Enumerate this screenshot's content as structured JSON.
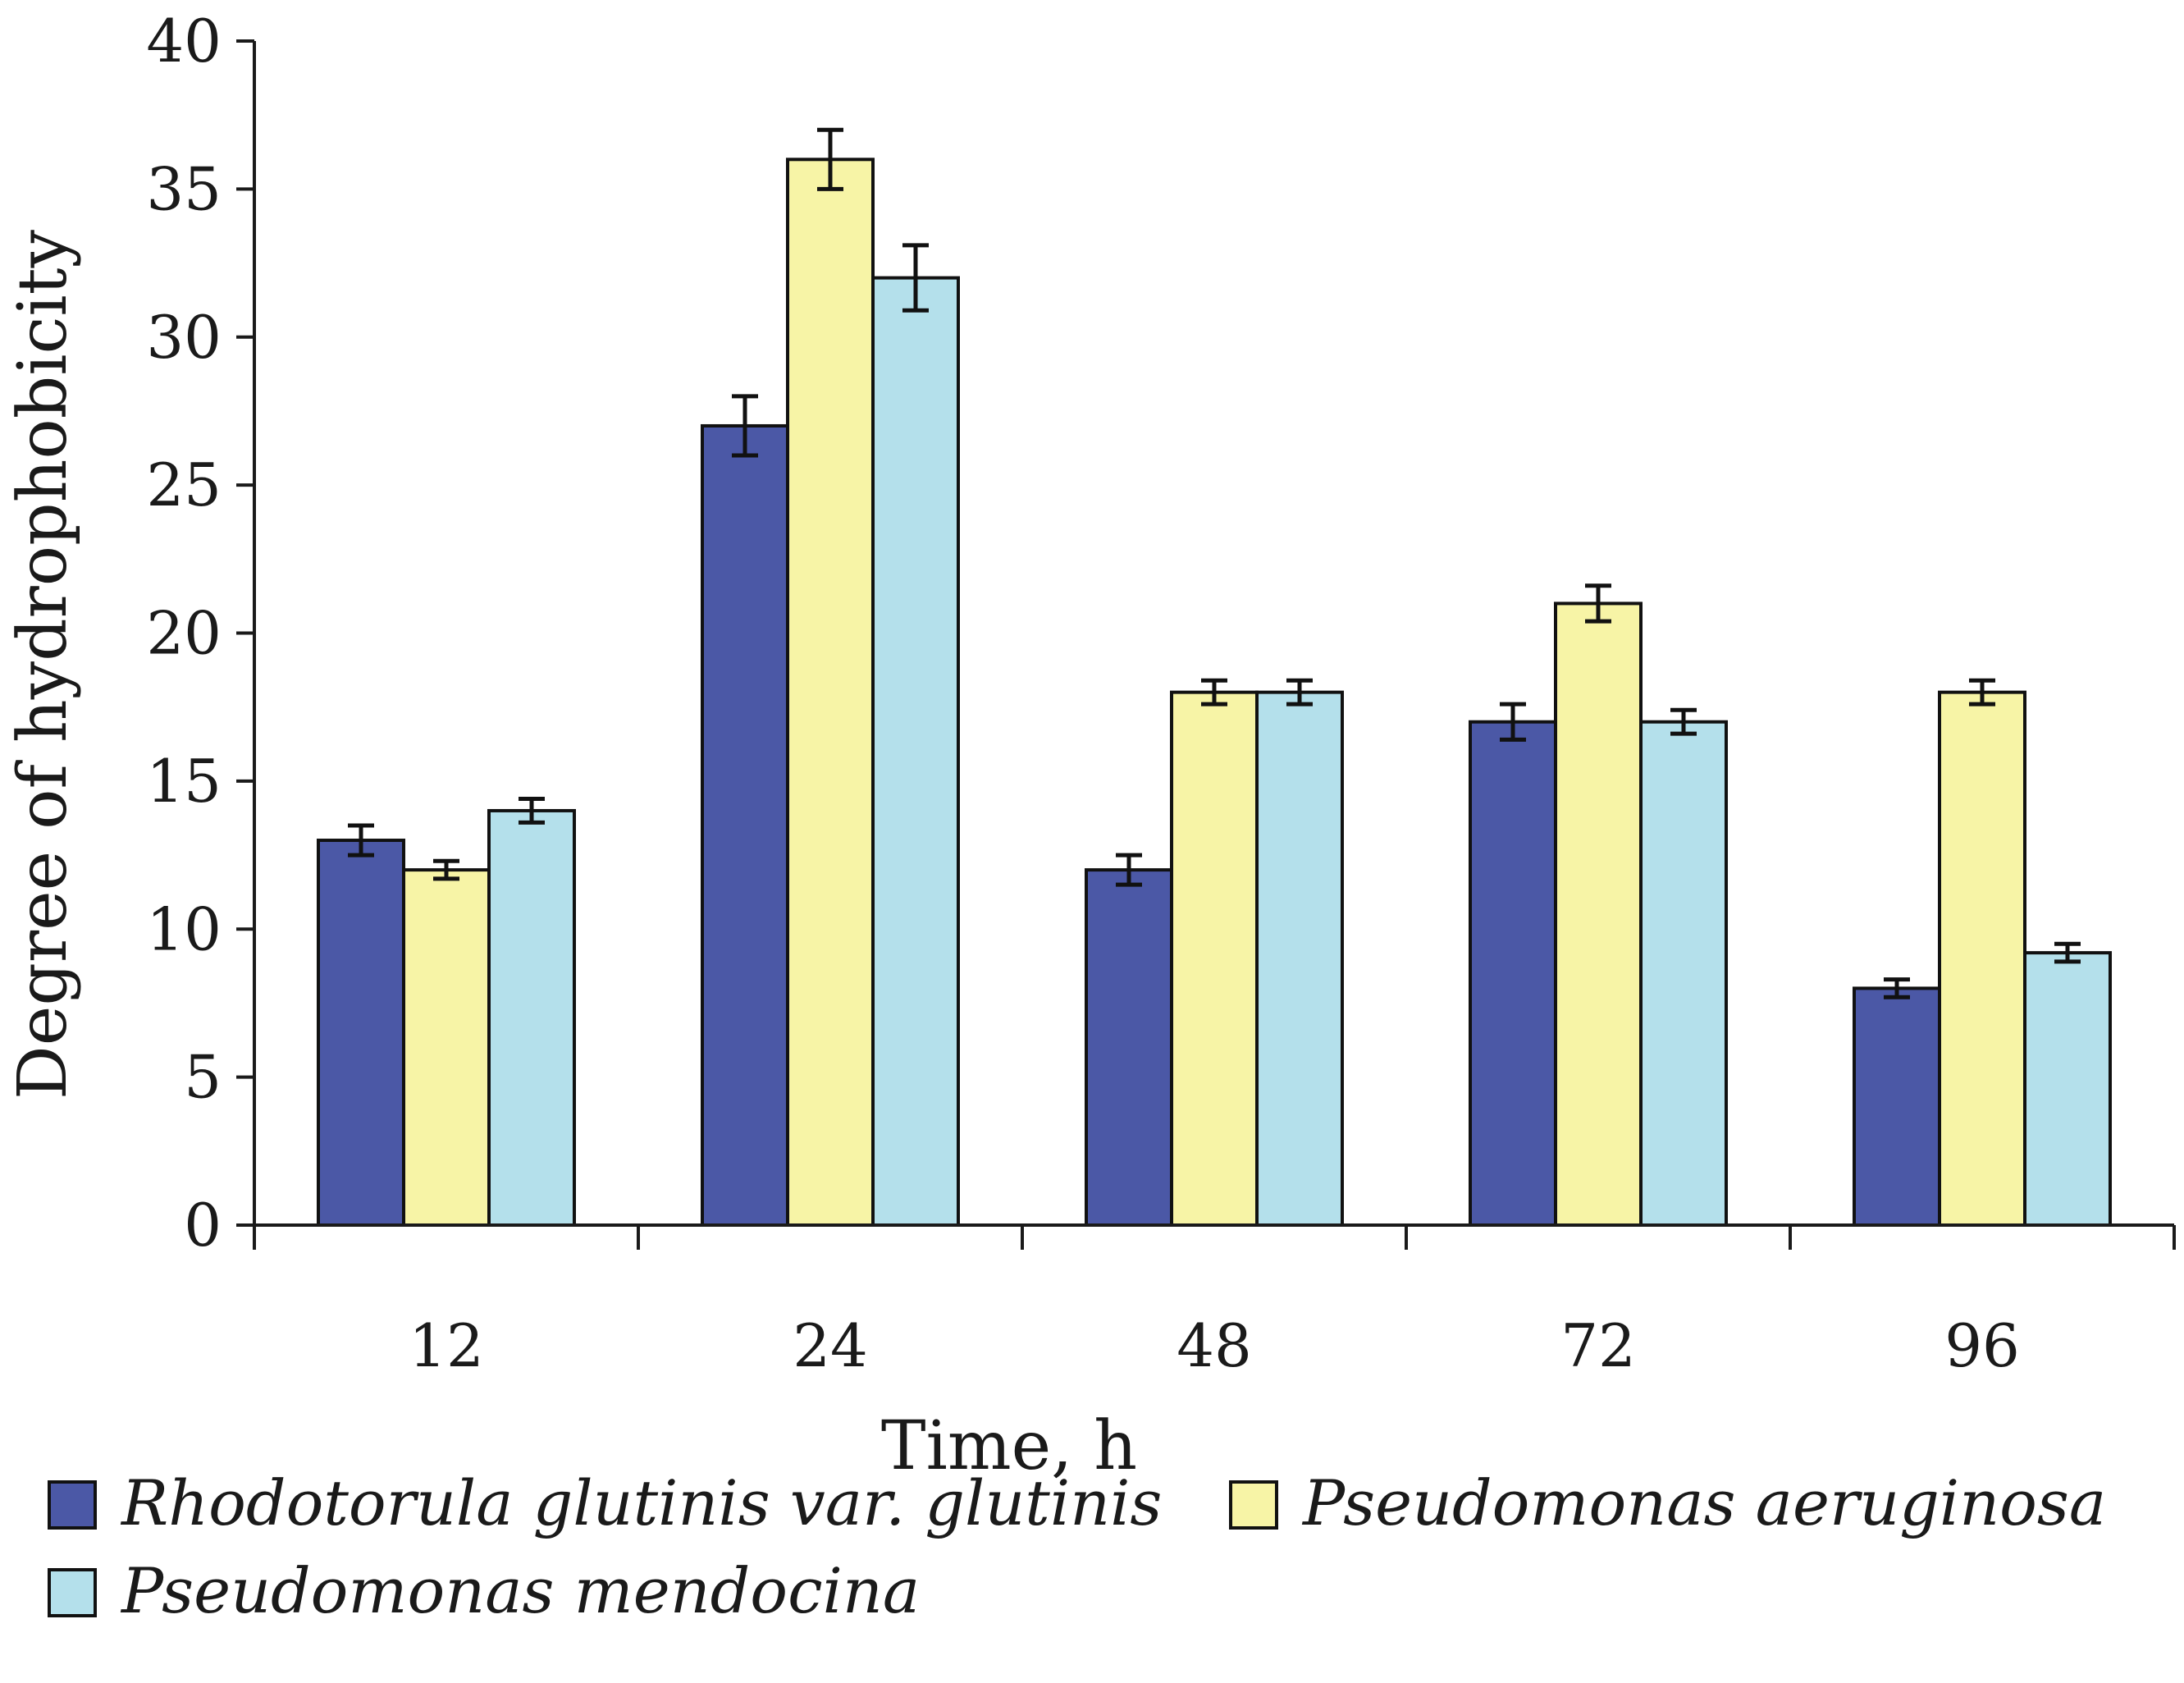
{
  "chart_data": {
    "type": "bar",
    "title": "",
    "xlabel": "Time, h",
    "ylabel": "Degree of hydrophobicity",
    "categories": [
      "12",
      "24",
      "48",
      "72",
      "96"
    ],
    "ylim": [
      0,
      40
    ],
    "yticks": [
      0,
      5,
      10,
      15,
      20,
      25,
      30,
      35,
      40
    ],
    "grid": false,
    "legend_position": "bottom",
    "series": [
      {
        "name": "Rhodotorula glutinis var. glutinis",
        "color": "#4b58a6",
        "values": [
          13,
          27,
          12,
          17,
          8
        ],
        "errors": [
          0.5,
          1.0,
          0.5,
          0.6,
          0.3
        ]
      },
      {
        "name": "Pseudomonas aeruginosa",
        "color": "#f7f4a6",
        "values": [
          12,
          36,
          18,
          21,
          18
        ],
        "errors": [
          0.3,
          1.0,
          0.4,
          0.6,
          0.4
        ]
      },
      {
        "name": "Pseudomonas mendocina",
        "color": "#b4e0eb",
        "values": [
          14,
          32,
          18,
          17,
          9.2
        ],
        "errors": [
          0.4,
          1.1,
          0.4,
          0.4,
          0.3
        ]
      }
    ]
  }
}
